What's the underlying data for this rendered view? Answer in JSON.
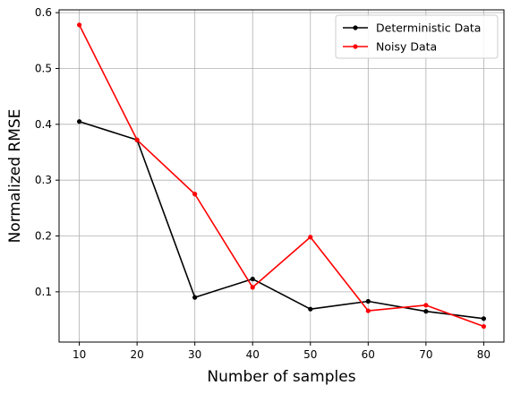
{
  "chart_data": {
    "type": "line",
    "title": "",
    "xlabel": "Number of samples",
    "ylabel": "Normalized RMSE",
    "xlim": [
      6.5,
      83.5
    ],
    "ylim": [
      0.01,
      0.605
    ],
    "grid": true,
    "legend_position": "top-right",
    "x_ticks": [
      10,
      20,
      30,
      40,
      50,
      60,
      70,
      80
    ],
    "x_tick_labels": [
      "10",
      "20",
      "30",
      "40",
      "50",
      "60",
      "70",
      "80"
    ],
    "y_ticks": [
      0.1,
      0.2,
      0.3,
      0.4,
      0.5,
      0.6
    ],
    "y_tick_labels": [
      "0.1",
      "0.2",
      "0.3",
      "0.4",
      "0.5",
      "0.6"
    ],
    "x": [
      10,
      20,
      30,
      40,
      50,
      60,
      70,
      80
    ],
    "series": [
      {
        "name": "Deterministic Data",
        "color": "#000000",
        "marker": "dot",
        "values": [
          0.405,
          0.372,
          0.09,
          0.123,
          0.069,
          0.083,
          0.065,
          0.052
        ]
      },
      {
        "name": "Noisy Data",
        "color": "#ff0000",
        "marker": "dot",
        "values": [
          0.578,
          0.372,
          0.275,
          0.108,
          0.198,
          0.066,
          0.076,
          0.038
        ]
      }
    ],
    "grid_color": "#b0b0b0"
  }
}
